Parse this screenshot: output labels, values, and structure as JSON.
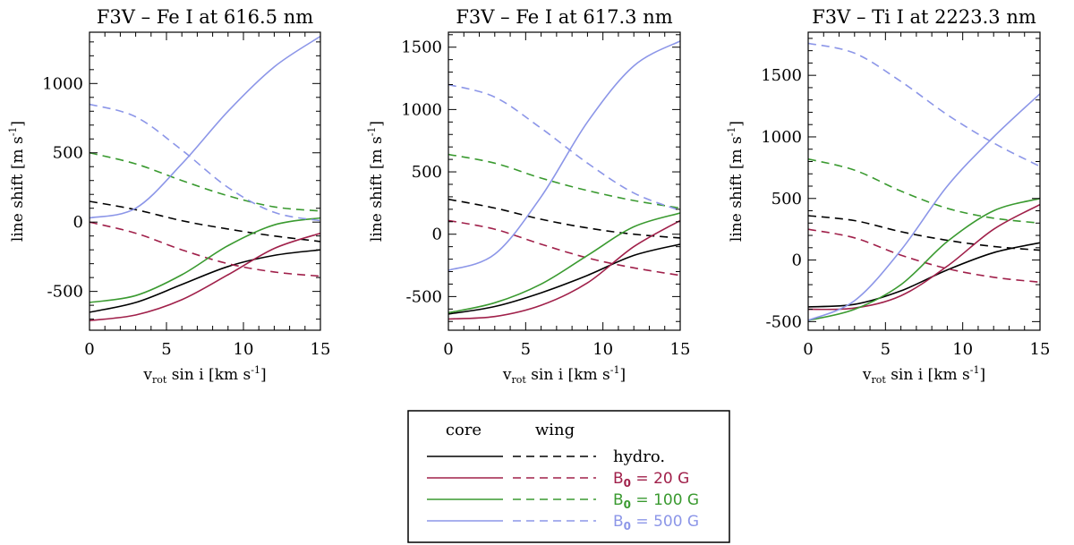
{
  "chart_data": [
    {
      "type": "line",
      "title": "F3V – Fe I at 616.5 nm",
      "xlabel": "v_rot sin i [km s^-1]",
      "ylabel": "line shift [m s^-1]",
      "xlim": [
        0,
        15
      ],
      "ylim": [
        -780,
        1370
      ],
      "xticks": [
        0,
        5,
        10,
        15
      ],
      "yticks": [
        -500,
        0,
        500,
        1000
      ],
      "x": [
        0,
        3,
        6,
        9,
        12,
        15
      ],
      "series": [
        {
          "name": "hydro. core",
          "kind": "core",
          "group": "hydro",
          "values": [
            -650,
            -580,
            -450,
            -320,
            -240,
            -200
          ]
        },
        {
          "name": "hydro. wing",
          "kind": "wing",
          "group": "hydro",
          "values": [
            150,
            90,
            10,
            -50,
            -100,
            -140
          ]
        },
        {
          "name": "B0 = 20 G core",
          "kind": "core",
          "group": "b20",
          "values": [
            -710,
            -670,
            -560,
            -380,
            -190,
            -80
          ]
        },
        {
          "name": "B0 = 20 G wing",
          "kind": "wing",
          "group": "b20",
          "values": [
            0,
            -80,
            -200,
            -300,
            -360,
            -390
          ]
        },
        {
          "name": "B0 = 100 G core",
          "kind": "core",
          "group": "b100",
          "values": [
            -580,
            -530,
            -380,
            -170,
            -20,
            30
          ]
        },
        {
          "name": "B0 = 100 G wing",
          "kind": "wing",
          "group": "b100",
          "values": [
            500,
            420,
            300,
            190,
            110,
            80
          ]
        },
        {
          "name": "B0 = 500 G core",
          "kind": "core",
          "group": "b500",
          "values": [
            30,
            100,
            420,
            800,
            1120,
            1340
          ]
        },
        {
          "name": "B0 = 500 G wing",
          "kind": "wing",
          "group": "b500",
          "values": [
            850,
            760,
            520,
            250,
            70,
            10
          ]
        }
      ]
    },
    {
      "type": "line",
      "title": "F3V – Fe I at 617.3 nm",
      "xlabel": "v_rot sin i [km s^-1]",
      "ylabel": "line shift [m s^-1]",
      "xlim": [
        0,
        15
      ],
      "ylim": [
        -770,
        1620
      ],
      "xticks": [
        0,
        5,
        10,
        15
      ],
      "yticks": [
        -500,
        0,
        500,
        1000,
        1500
      ],
      "x": [
        0,
        3,
        6,
        9,
        12,
        15
      ],
      "series": [
        {
          "name": "hydro. core",
          "kind": "core",
          "group": "hydro",
          "values": [
            -640,
            -580,
            -470,
            -330,
            -170,
            -80
          ]
        },
        {
          "name": "hydro. wing",
          "kind": "wing",
          "group": "hydro",
          "values": [
            280,
            210,
            120,
            50,
            0,
            -30
          ]
        },
        {
          "name": "B0 = 20 G core",
          "kind": "core",
          "group": "b20",
          "values": [
            -680,
            -660,
            -570,
            -390,
            -100,
            110
          ]
        },
        {
          "name": "B0 = 20 G wing",
          "kind": "wing",
          "group": "b20",
          "values": [
            110,
            40,
            -80,
            -190,
            -270,
            -330
          ]
        },
        {
          "name": "B0 = 100 G core",
          "kind": "core",
          "group": "b100",
          "values": [
            -630,
            -550,
            -400,
            -170,
            60,
            170
          ]
        },
        {
          "name": "B0 = 100 G wing",
          "kind": "wing",
          "group": "b100",
          "values": [
            640,
            570,
            450,
            350,
            270,
            210
          ]
        },
        {
          "name": "B0 = 500 G core",
          "kind": "core",
          "group": "b500",
          "values": [
            -290,
            -160,
            300,
            900,
            1350,
            1550
          ]
        },
        {
          "name": "B0 = 500 G wing",
          "kind": "wing",
          "group": "b500",
          "values": [
            1200,
            1100,
            850,
            570,
            330,
            190
          ]
        }
      ]
    },
    {
      "type": "line",
      "title": "F3V – Ti I at 2223.3 nm",
      "xlabel": "v_rot sin i [km s^-1]",
      "ylabel": "line shift [m s^-1]",
      "xlim": [
        0,
        15
      ],
      "ylim": [
        -570,
        1850
      ],
      "xticks": [
        0,
        5,
        10,
        15
      ],
      "yticks": [
        -500,
        0,
        500,
        1000,
        1500
      ],
      "x": [
        0,
        3,
        6,
        9,
        12,
        15
      ],
      "series": [
        {
          "name": "hydro. core",
          "kind": "core",
          "group": "hydro",
          "values": [
            -380,
            -360,
            -250,
            -80,
            60,
            140
          ]
        },
        {
          "name": "hydro. wing",
          "kind": "wing",
          "group": "hydro",
          "values": [
            360,
            320,
            230,
            160,
            110,
            80
          ]
        },
        {
          "name": "B0 = 20 G core",
          "kind": "core",
          "group": "b20",
          "values": [
            -400,
            -390,
            -290,
            -50,
            250,
            450
          ]
        },
        {
          "name": "B0 = 20 G wing",
          "kind": "wing",
          "group": "b20",
          "values": [
            250,
            180,
            40,
            -70,
            -140,
            -180
          ]
        },
        {
          "name": "B0 = 100 G core",
          "kind": "core",
          "group": "b100",
          "values": [
            -490,
            -400,
            -200,
            150,
            400,
            500
          ]
        },
        {
          "name": "B0 = 100 G wing",
          "kind": "wing",
          "group": "b100",
          "values": [
            820,
            730,
            560,
            420,
            340,
            300
          ]
        },
        {
          "name": "B0 = 500 G core",
          "kind": "core",
          "group": "b500",
          "values": [
            -490,
            -330,
            80,
            600,
            1000,
            1350
          ]
        },
        {
          "name": "B0 = 500 G wing",
          "kind": "wing",
          "group": "b500",
          "values": [
            1760,
            1680,
            1450,
            1180,
            950,
            760
          ]
        }
      ]
    }
  ],
  "axis_text": {
    "xlabel_v": "v",
    "xlabel_sub": "rot",
    "xlabel_rest": " sin i  [km s",
    "xlabel_sup": "-1",
    "xlabel_end": "]",
    "ylabel_main": "line shift  [m s",
    "ylabel_sup": "-1",
    "ylabel_end": "]"
  },
  "legend": {
    "core_label": "core",
    "wing_label": "wing",
    "entries": [
      {
        "group": "hydro",
        "prefix": "hydro.",
        "sub": "",
        "suffix": ""
      },
      {
        "group": "b20",
        "prefix": "B",
        "sub": "0",
        "suffix": " = 20 G"
      },
      {
        "group": "b100",
        "prefix": "B",
        "sub": "0",
        "suffix": " = 100 G"
      },
      {
        "group": "b500",
        "prefix": "B",
        "sub": "0",
        "suffix": " = 500 G"
      }
    ]
  },
  "colors": {
    "hydro": "#000000",
    "b20": "#a0204a",
    "b100": "#3a9a30",
    "b500": "#8c96e8"
  }
}
